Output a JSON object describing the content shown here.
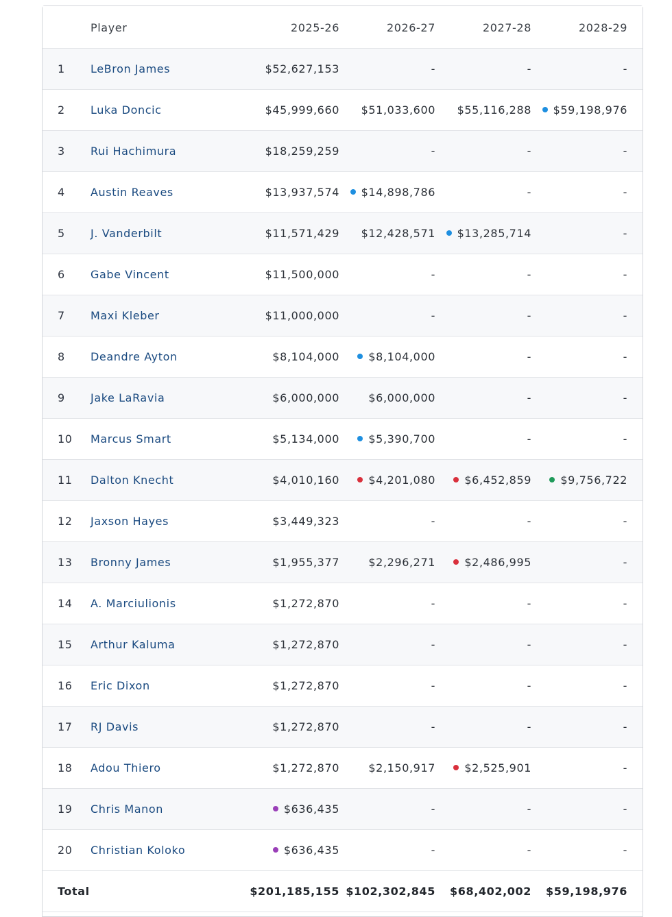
{
  "header": {
    "rank": "",
    "player": "Player",
    "years": [
      "2025-26",
      "2026-27",
      "2027-28",
      "2028-29"
    ]
  },
  "colors": {
    "blue": "#1e8fe0",
    "red": "#d9303c",
    "green": "#1f9a5a",
    "purple": "#9a3fb8"
  },
  "rows": [
    {
      "rank": "1",
      "player": "LeBron James",
      "values": [
        "$52,627,153",
        "-",
        "-",
        "-"
      ],
      "dots": [
        "",
        "",
        "",
        ""
      ]
    },
    {
      "rank": "2",
      "player": "Luka Doncic",
      "values": [
        "$45,999,660",
        "$51,033,600",
        "$55,116,288",
        "$59,198,976"
      ],
      "dots": [
        "",
        "",
        "",
        "blue"
      ]
    },
    {
      "rank": "3",
      "player": "Rui Hachimura",
      "values": [
        "$18,259,259",
        "-",
        "-",
        "-"
      ],
      "dots": [
        "",
        "",
        "",
        ""
      ]
    },
    {
      "rank": "4",
      "player": "Austin Reaves",
      "values": [
        "$13,937,574",
        "$14,898,786",
        "-",
        "-"
      ],
      "dots": [
        "",
        "blue",
        "",
        ""
      ]
    },
    {
      "rank": "5",
      "player": "J. Vanderbilt",
      "values": [
        "$11,571,429",
        "$12,428,571",
        "$13,285,714",
        "-"
      ],
      "dots": [
        "",
        "",
        "blue",
        ""
      ]
    },
    {
      "rank": "6",
      "player": "Gabe Vincent",
      "values": [
        "$11,500,000",
        "-",
        "-",
        "-"
      ],
      "dots": [
        "",
        "",
        "",
        ""
      ]
    },
    {
      "rank": "7",
      "player": "Maxi Kleber",
      "values": [
        "$11,000,000",
        "-",
        "-",
        "-"
      ],
      "dots": [
        "",
        "",
        "",
        ""
      ]
    },
    {
      "rank": "8",
      "player": "Deandre Ayton",
      "values": [
        "$8,104,000",
        "$8,104,000",
        "-",
        "-"
      ],
      "dots": [
        "",
        "blue",
        "",
        ""
      ]
    },
    {
      "rank": "9",
      "player": "Jake LaRavia",
      "values": [
        "$6,000,000",
        "$6,000,000",
        "-",
        "-"
      ],
      "dots": [
        "",
        "",
        "",
        ""
      ]
    },
    {
      "rank": "10",
      "player": "Marcus Smart",
      "values": [
        "$5,134,000",
        "$5,390,700",
        "-",
        "-"
      ],
      "dots": [
        "",
        "blue",
        "",
        ""
      ]
    },
    {
      "rank": "11",
      "player": "Dalton Knecht",
      "values": [
        "$4,010,160",
        "$4,201,080",
        "$6,452,859",
        "$9,756,722"
      ],
      "dots": [
        "",
        "red",
        "red",
        "green"
      ]
    },
    {
      "rank": "12",
      "player": "Jaxson Hayes",
      "values": [
        "$3,449,323",
        "-",
        "-",
        "-"
      ],
      "dots": [
        "",
        "",
        "",
        ""
      ]
    },
    {
      "rank": "13",
      "player": "Bronny James",
      "values": [
        "$1,955,377",
        "$2,296,271",
        "$2,486,995",
        "-"
      ],
      "dots": [
        "",
        "",
        "red",
        ""
      ]
    },
    {
      "rank": "14",
      "player": "A. Marciulionis",
      "values": [
        "$1,272,870",
        "-",
        "-",
        "-"
      ],
      "dots": [
        "",
        "",
        "",
        ""
      ]
    },
    {
      "rank": "15",
      "player": "Arthur Kaluma",
      "values": [
        "$1,272,870",
        "-",
        "-",
        "-"
      ],
      "dots": [
        "",
        "",
        "",
        ""
      ]
    },
    {
      "rank": "16",
      "player": "Eric Dixon",
      "values": [
        "$1,272,870",
        "-",
        "-",
        "-"
      ],
      "dots": [
        "",
        "",
        "",
        ""
      ]
    },
    {
      "rank": "17",
      "player": "RJ Davis",
      "values": [
        "$1,272,870",
        "-",
        "-",
        "-"
      ],
      "dots": [
        "",
        "",
        "",
        ""
      ]
    },
    {
      "rank": "18",
      "player": "Adou Thiero",
      "values": [
        "$1,272,870",
        "$2,150,917",
        "$2,525,901",
        "-"
      ],
      "dots": [
        "",
        "",
        "red",
        ""
      ]
    },
    {
      "rank": "19",
      "player": "Chris Manon",
      "values": [
        "$636,435",
        "-",
        "-",
        "-"
      ],
      "dots": [
        "purple",
        "",
        "",
        ""
      ]
    },
    {
      "rank": "20",
      "player": "Christian Koloko",
      "values": [
        "$636,435",
        "-",
        "-",
        "-"
      ],
      "dots": [
        "purple",
        "",
        "",
        ""
      ]
    }
  ],
  "total": {
    "label": "Total",
    "values": [
      "$201,185,155",
      "$102,302,845",
      "$68,402,002",
      "$59,198,976"
    ]
  }
}
